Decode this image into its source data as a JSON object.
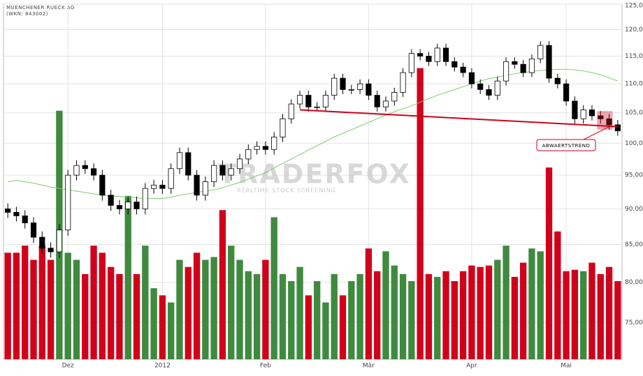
{
  "chart_data": {
    "type": "candlestick",
    "title": "MUENCHENER RUECK AG",
    "subtitle": "(WKN: 843002)",
    "categories": [
      null,
      null,
      null,
      null,
      null,
      null,
      null,
      "Dez",
      null,
      null,
      null,
      null,
      null,
      null,
      null,
      null,
      null,
      null,
      "2012",
      null,
      null,
      null,
      null,
      null,
      null,
      null,
      null,
      null,
      null,
      null,
      "Feb",
      null,
      null,
      null,
      null,
      null,
      null,
      null,
      null,
      null,
      null,
      null,
      "Mär",
      null,
      null,
      null,
      null,
      null,
      null,
      null,
      null,
      null,
      null,
      null,
      "Apr",
      null,
      null,
      null,
      null,
      null,
      null,
      null,
      null,
      null,
      null,
      "Mai",
      null,
      null,
      null,
      null,
      null,
      null
    ],
    "open": [
      90,
      89.5,
      89,
      88,
      86,
      84.5,
      84,
      87,
      95,
      96.5,
      96,
      95,
      92,
      90.5,
      90,
      91,
      90,
      93,
      93.5,
      93,
      96,
      98.5,
      95,
      92,
      94,
      96.5,
      95,
      96,
      97.5,
      99,
      99.5,
      99,
      101,
      104,
      106.5,
      108,
      106,
      106,
      108,
      111,
      109,
      109,
      110,
      108,
      106,
      107,
      108.5,
      112,
      115.5,
      115,
      114,
      116.5,
      114,
      113,
      112,
      110,
      109,
      108,
      110.5,
      114,
      113.5,
      112,
      114.5,
      117,
      111,
      110,
      107,
      104,
      105.5,
      104.5,
      104,
      103
    ],
    "high": [
      90.8,
      90.3,
      89.8,
      88.8,
      86.8,
      85.3,
      87.8,
      95.8,
      97.3,
      97.3,
      96.8,
      95.8,
      92.8,
      91.3,
      91.8,
      91.8,
      93.8,
      94.3,
      94.3,
      96.8,
      99.3,
      99.3,
      95.8,
      94.8,
      97.3,
      97.3,
      96.8,
      98.3,
      99.8,
      100.3,
      100.3,
      101.8,
      104.8,
      107.3,
      108.8,
      108.8,
      106.8,
      108.8,
      111.8,
      111.8,
      109.8,
      110.8,
      110.8,
      108.8,
      107.8,
      109.3,
      112.8,
      116.3,
      116.3,
      115.8,
      117.3,
      117.3,
      114.8,
      113.8,
      112.8,
      110.8,
      109.8,
      111.3,
      114.8,
      114.8,
      114.3,
      115.3,
      117.8,
      117.8,
      111.8,
      110.8,
      107.8,
      106.3,
      106.3,
      105.3,
      104.8,
      103.8
    ],
    "low": [
      88.7,
      88.2,
      87.2,
      85.2,
      83.7,
      83.2,
      83.2,
      86.2,
      94.2,
      95.2,
      94.2,
      91.2,
      89.7,
      89.2,
      89.2,
      89.2,
      89.2,
      92.2,
      92.2,
      92.2,
      95.2,
      94.2,
      91.2,
      91.2,
      93.2,
      94.2,
      94.2,
      95.2,
      96.7,
      98.2,
      98.2,
      98.2,
      100.2,
      103.2,
      105.7,
      105.2,
      105.2,
      105.2,
      107.2,
      108.2,
      108.2,
      108.2,
      107.2,
      105.2,
      105.2,
      106.2,
      107.7,
      111.2,
      114.2,
      113.2,
      113.2,
      113.2,
      112.2,
      111.2,
      109.2,
      108.2,
      107.2,
      107.2,
      109.7,
      112.7,
      111.2,
      111.2,
      113.7,
      110.2,
      109.2,
      106.2,
      103.2,
      103.2,
      103.7,
      103.2,
      102.2,
      101.2
    ],
    "close": [
      89.5,
      89,
      88,
      86,
      84.5,
      84,
      87,
      95,
      96.5,
      96,
      95,
      92,
      90.5,
      90,
      91,
      90,
      93,
      93.5,
      93,
      96,
      98.5,
      95,
      92,
      94,
      96.5,
      95,
      96,
      97.5,
      99,
      99.5,
      99,
      101,
      104,
      106.5,
      108,
      106,
      106,
      108,
      111,
      109,
      109,
      110,
      108,
      106,
      107,
      108.5,
      112,
      115.5,
      115,
      114,
      116.5,
      114,
      113,
      112,
      110,
      109,
      108,
      110.5,
      114,
      113.5,
      112,
      114.5,
      117,
      111,
      110,
      107,
      104,
      105.5,
      104.5,
      104,
      103,
      102
    ],
    "volume": {
      "y2lim": [
        0,
        250
      ],
      "values": [
        75,
        75,
        80,
        70,
        80,
        70,
        175,
        75,
        70,
        60,
        80,
        75,
        65,
        60,
        115,
        60,
        80,
        50,
        45,
        40,
        70,
        65,
        75,
        70,
        72,
        105,
        80,
        70,
        62,
        60,
        70,
        100,
        60,
        55,
        65,
        45,
        55,
        40,
        60,
        45,
        55,
        60,
        78,
        62,
        76,
        66,
        60,
        55,
        205,
        60,
        58,
        62,
        55,
        62,
        66,
        65,
        66,
        70,
        80,
        58,
        68,
        78,
        76,
        135,
        90,
        62,
        63,
        62,
        68,
        60,
        65,
        55
      ]
    },
    "ma": {
      "color": "#7ccc6a",
      "values": [
        94,
        94.2,
        94,
        93.8,
        93.5,
        93.2,
        93,
        92.8,
        92.6,
        92.4,
        92.2,
        92,
        91.9,
        91.8,
        91.7,
        91.6,
        91.5,
        91.5,
        91.5,
        91.7,
        92,
        92.2,
        92.4,
        92.6,
        92.8,
        93.1,
        93.5,
        93.9,
        94.4,
        94.9,
        95.4,
        96.1,
        96.8,
        97.5,
        98.2,
        98.9,
        99.6,
        100.3,
        101,
        101.6,
        102.2,
        102.8,
        103.4,
        104,
        104.6,
        105.2,
        105.7,
        106.2,
        106.8,
        107.4,
        108,
        108.5,
        109,
        109.5,
        110,
        110.5,
        110.9,
        111.2,
        111.5,
        111.8,
        112,
        112.2,
        112.4,
        112.5,
        112.6,
        112.6,
        112.5,
        112.3,
        112,
        111.6,
        111.1,
        110.5
      ]
    },
    "ylim": [
      70.7,
      125
    ],
    "log_scale": true,
    "grid": true,
    "yticks": [
      {
        "value": 125,
        "label": "125,0"
      },
      {
        "value": 120,
        "label": "120,0"
      },
      {
        "value": 115,
        "label": "115,0"
      },
      {
        "value": 110,
        "label": "110,0"
      },
      {
        "value": 105,
        "label": "105,0"
      },
      {
        "value": 100,
        "label": "100,0"
      },
      {
        "value": 95,
        "label": "95,00"
      },
      {
        "value": 90,
        "label": "90,00"
      },
      {
        "value": 85,
        "label": "85,00"
      },
      {
        "value": 80,
        "label": "80,00"
      },
      {
        "value": 75,
        "label": "75,00"
      }
    ],
    "up_color": "#3f8a3f",
    "down_color": "#d0021b",
    "trend_line": {
      "color": "#d0021b",
      "start_index": 34,
      "start_value": 105.5,
      "end_index": 71,
      "end_value": 102.7
    },
    "annotation": "ABWAERTSTREND",
    "watermark": {
      "title": "TRADERFOX",
      "subtitle": "REALTIME STOCK SCREENING"
    }
  }
}
